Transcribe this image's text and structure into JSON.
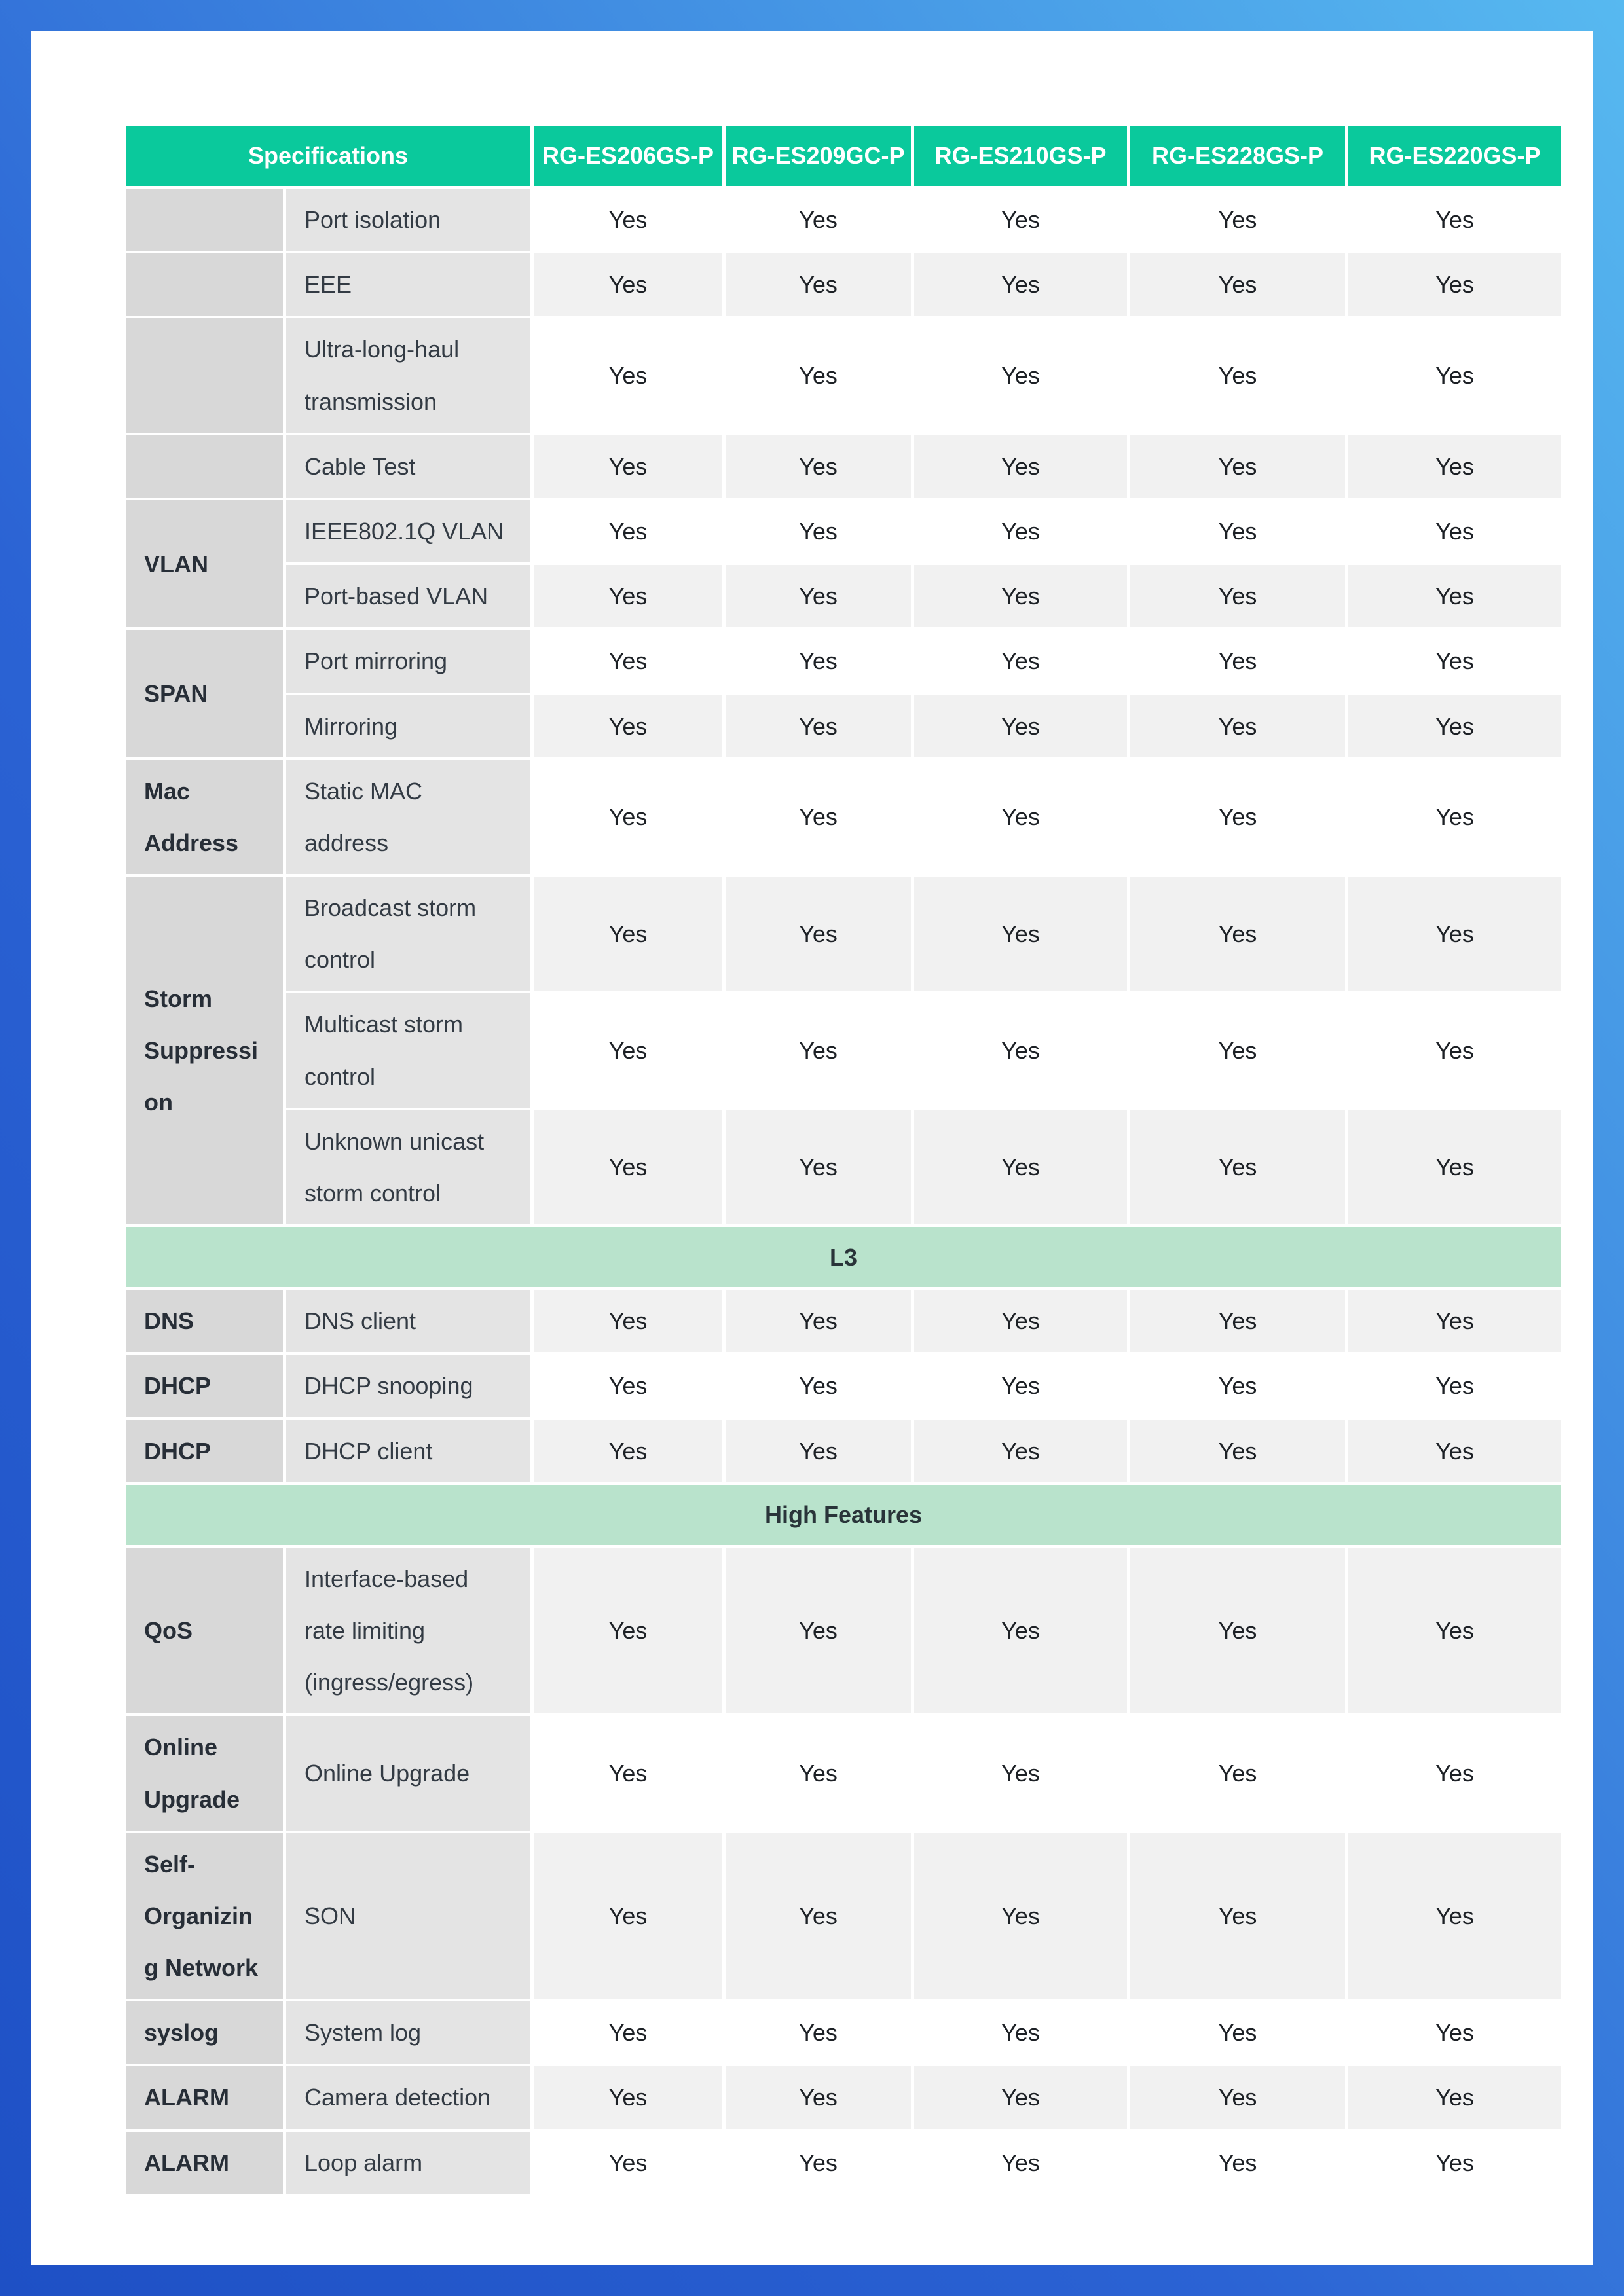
{
  "colors": {
    "frame_gradient_start": "#1e50c5",
    "frame_gradient_end": "#57b9f0",
    "header_green": "#0ac99c",
    "section_green": "#b9e3cc",
    "category_gray": "#d8d8d8",
    "feature_gray": "#e4e4e4",
    "stripe_gray": "#f1f1f1",
    "header_text": "#ffffff"
  },
  "table": {
    "header": {
      "spec_label": "Specifications",
      "products": [
        "RG-ES206GS-P",
        "RG-ES209GC-P",
        "RG-ES210GS-P",
        "RG-ES228GS-P",
        "RG-ES220GS-P"
      ]
    },
    "rows": [
      {
        "category": {
          "label": "",
          "rowspan": 1
        },
        "feature": "Port isolation",
        "values": [
          "Yes",
          "Yes",
          "Yes",
          "Yes",
          "Yes"
        ],
        "stripe": "white"
      },
      {
        "category": {
          "label": "",
          "rowspan": 1
        },
        "feature": "EEE",
        "values": [
          "Yes",
          "Yes",
          "Yes",
          "Yes",
          "Yes"
        ],
        "stripe": "gray"
      },
      {
        "category": {
          "label": "",
          "rowspan": 1
        },
        "feature": "Ultra-long-haul transmission",
        "values": [
          "Yes",
          "Yes",
          "Yes",
          "Yes",
          "Yes"
        ],
        "stripe": "white"
      },
      {
        "category": {
          "label": "",
          "rowspan": 1
        },
        "feature": "Cable Test",
        "values": [
          "Yes",
          "Yes",
          "Yes",
          "Yes",
          "Yes"
        ],
        "stripe": "gray"
      },
      {
        "category": {
          "label": "VLAN",
          "rowspan": 2
        },
        "feature": "IEEE802.1Q VLAN",
        "values": [
          "Yes",
          "Yes",
          "Yes",
          "Yes",
          "Yes"
        ],
        "stripe": "white"
      },
      {
        "feature": "Port-based VLAN",
        "values": [
          "Yes",
          "Yes",
          "Yes",
          "Yes",
          "Yes"
        ],
        "stripe": "gray"
      },
      {
        "category": {
          "label": "SPAN",
          "rowspan": 2
        },
        "feature": "Port mirroring",
        "values": [
          "Yes",
          "Yes",
          "Yes",
          "Yes",
          "Yes"
        ],
        "stripe": "white"
      },
      {
        "feature": "Mirroring",
        "values": [
          "Yes",
          "Yes",
          "Yes",
          "Yes",
          "Yes"
        ],
        "stripe": "gray"
      },
      {
        "category": {
          "label": "Mac Address",
          "rowspan": 1
        },
        "feature": "Static MAC address",
        "values": [
          "Yes",
          "Yes",
          "Yes",
          "Yes",
          "Yes"
        ],
        "stripe": "white"
      },
      {
        "category": {
          "label": "Storm Suppression",
          "rowspan": 3
        },
        "feature": "Broadcast storm control",
        "values": [
          "Yes",
          "Yes",
          "Yes",
          "Yes",
          "Yes"
        ],
        "stripe": "gray"
      },
      {
        "feature": "Multicast storm control",
        "values": [
          "Yes",
          "Yes",
          "Yes",
          "Yes",
          "Yes"
        ],
        "stripe": "white"
      },
      {
        "feature": "Unknown unicast storm control",
        "values": [
          "Yes",
          "Yes",
          "Yes",
          "Yes",
          "Yes"
        ],
        "stripe": "gray"
      },
      {
        "section": "L3"
      },
      {
        "category": {
          "label": "DNS",
          "rowspan": 1
        },
        "feature": "DNS client",
        "values": [
          "Yes",
          "Yes",
          "Yes",
          "Yes",
          "Yes"
        ],
        "stripe": "gray"
      },
      {
        "category": {
          "label": "DHCP",
          "rowspan": 1
        },
        "feature": "DHCP snooping",
        "values": [
          "Yes",
          "Yes",
          "Yes",
          "Yes",
          "Yes"
        ],
        "stripe": "white"
      },
      {
        "category": {
          "label": "DHCP",
          "rowspan": 1
        },
        "feature": "DHCP client",
        "values": [
          "Yes",
          "Yes",
          "Yes",
          "Yes",
          "Yes"
        ],
        "stripe": "gray"
      },
      {
        "section": "High Features"
      },
      {
        "category": {
          "label": "QoS",
          "rowspan": 1
        },
        "feature": "Interface-based rate limiting (ingress/egress)",
        "values": [
          "Yes",
          "Yes",
          "Yes",
          "Yes",
          "Yes"
        ],
        "stripe": "gray"
      },
      {
        "category": {
          "label": "Online Upgrade",
          "rowspan": 1
        },
        "feature": "Online Upgrade",
        "values": [
          "Yes",
          "Yes",
          "Yes",
          "Yes",
          "Yes"
        ],
        "stripe": "white"
      },
      {
        "category": {
          "label": "Self-Organizing Network",
          "rowspan": 1
        },
        "feature": "SON",
        "values": [
          "Yes",
          "Yes",
          "Yes",
          "Yes",
          "Yes"
        ],
        "stripe": "gray"
      },
      {
        "category": {
          "label": "syslog",
          "rowspan": 1
        },
        "feature": "System log",
        "values": [
          "Yes",
          "Yes",
          "Yes",
          "Yes",
          "Yes"
        ],
        "stripe": "white"
      },
      {
        "category": {
          "label": "ALARM",
          "rowspan": 1
        },
        "feature": "Camera detection",
        "values": [
          "Yes",
          "Yes",
          "Yes",
          "Yes",
          "Yes"
        ],
        "stripe": "gray"
      },
      {
        "category": {
          "label": "ALARM",
          "rowspan": 1
        },
        "feature": "Loop alarm",
        "values": [
          "Yes",
          "Yes",
          "Yes",
          "Yes",
          "Yes"
        ],
        "stripe": "white"
      }
    ]
  }
}
